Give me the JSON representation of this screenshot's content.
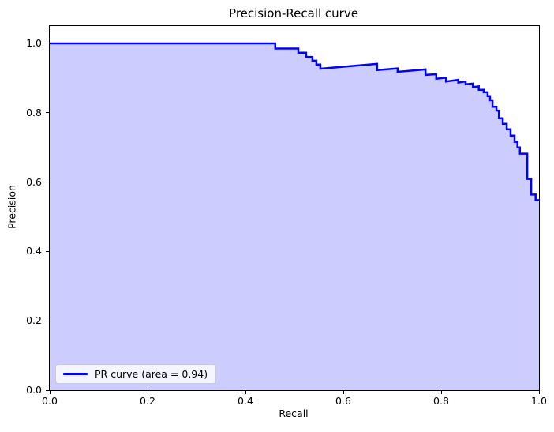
{
  "colors": {
    "line": "#0000ff",
    "fill": "#0000ff",
    "fill_opacity": 0.2,
    "axes": "#000000",
    "legend_border": "#cccccc"
  },
  "chart_data": {
    "type": "line",
    "title": "Precision-Recall curve",
    "xlabel": "Recall",
    "ylabel": "Precision",
    "xlim": [
      0.0,
      1.0
    ],
    "ylim": [
      0.0,
      1.05
    ],
    "grid": false,
    "x_ticks": [
      {
        "v": 0.0,
        "label": "0.0"
      },
      {
        "v": 0.2,
        "label": "0.2"
      },
      {
        "v": 0.4,
        "label": "0.4"
      },
      {
        "v": 0.6,
        "label": "0.6"
      },
      {
        "v": 0.8,
        "label": "0.8"
      },
      {
        "v": 1.0,
        "label": "1.0"
      }
    ],
    "y_ticks": [
      {
        "v": 0.0,
        "label": "0.0"
      },
      {
        "v": 0.2,
        "label": "0.2"
      },
      {
        "v": 0.4,
        "label": "0.4"
      },
      {
        "v": 0.6,
        "label": "0.6"
      },
      {
        "v": 0.8,
        "label": "0.8"
      },
      {
        "v": 1.0,
        "label": "1.0"
      }
    ],
    "legend": {
      "label": "PR curve (area = 0.94)",
      "position": "lower left"
    },
    "series": [
      {
        "name": "PR curve",
        "area": 0.94,
        "fill_to_zero": true,
        "points": [
          [
            0.0,
            1.0
          ],
          [
            0.461,
            1.0
          ],
          [
            0.461,
            0.985
          ],
          [
            0.508,
            0.985
          ],
          [
            0.508,
            0.973
          ],
          [
            0.524,
            0.973
          ],
          [
            0.524,
            0.961
          ],
          [
            0.537,
            0.961
          ],
          [
            0.537,
            0.95
          ],
          [
            0.545,
            0.95
          ],
          [
            0.545,
            0.939
          ],
          [
            0.553,
            0.939
          ],
          [
            0.553,
            0.927
          ],
          [
            0.669,
            0.941
          ],
          [
            0.669,
            0.923
          ],
          [
            0.711,
            0.928
          ],
          [
            0.711,
            0.918
          ],
          [
            0.768,
            0.925
          ],
          [
            0.768,
            0.909
          ],
          [
            0.79,
            0.911
          ],
          [
            0.79,
            0.898
          ],
          [
            0.81,
            0.901
          ],
          [
            0.81,
            0.89
          ],
          [
            0.835,
            0.895
          ],
          [
            0.835,
            0.887
          ],
          [
            0.85,
            0.89
          ],
          [
            0.85,
            0.882
          ],
          [
            0.865,
            0.884
          ],
          [
            0.865,
            0.874
          ],
          [
            0.877,
            0.876
          ],
          [
            0.877,
            0.866
          ],
          [
            0.887,
            0.866
          ],
          [
            0.887,
            0.859
          ],
          [
            0.895,
            0.859
          ],
          [
            0.895,
            0.848
          ],
          [
            0.9,
            0.848
          ],
          [
            0.9,
            0.836
          ],
          [
            0.905,
            0.836
          ],
          [
            0.905,
            0.817
          ],
          [
            0.913,
            0.817
          ],
          [
            0.913,
            0.806
          ],
          [
            0.918,
            0.806
          ],
          [
            0.918,
            0.784
          ],
          [
            0.926,
            0.784
          ],
          [
            0.926,
            0.768
          ],
          [
            0.934,
            0.768
          ],
          [
            0.934,
            0.752
          ],
          [
            0.942,
            0.752
          ],
          [
            0.942,
            0.734
          ],
          [
            0.95,
            0.734
          ],
          [
            0.95,
            0.716
          ],
          [
            0.956,
            0.716
          ],
          [
            0.956,
            0.7
          ],
          [
            0.961,
            0.7
          ],
          [
            0.961,
            0.682
          ],
          [
            0.976,
            0.682
          ],
          [
            0.976,
            0.609
          ],
          [
            0.984,
            0.609
          ],
          [
            0.984,
            0.564
          ],
          [
            0.993,
            0.564
          ],
          [
            0.993,
            0.548
          ],
          [
            1.0,
            0.548
          ]
        ]
      }
    ]
  }
}
